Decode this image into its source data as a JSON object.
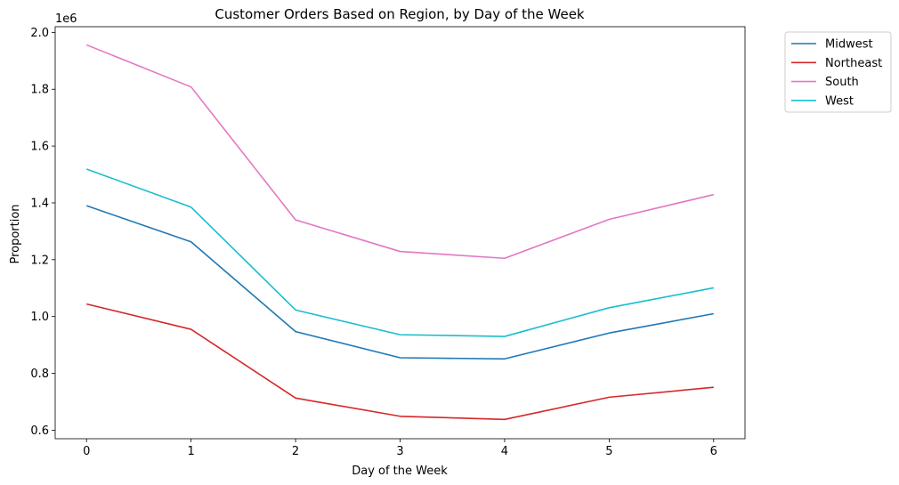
{
  "chart_data": {
    "type": "line",
    "title": "Customer Orders Based on Region, by Day of the Week",
    "xlabel": "Day of the Week",
    "ylabel": "Proportion",
    "y_offset_label": "1e6",
    "x": [
      0,
      1,
      2,
      3,
      4,
      5,
      6
    ],
    "x_ticks": [
      "0",
      "1",
      "2",
      "3",
      "4",
      "5",
      "6"
    ],
    "y_ticks": [
      "0.6",
      "0.8",
      "1.0",
      "1.2",
      "1.4",
      "1.6",
      "1.8",
      "2.0"
    ],
    "y_tick_values": [
      0.6,
      0.8,
      1.0,
      1.2,
      1.4,
      1.6,
      1.8,
      2.0
    ],
    "xlim": [
      -0.3,
      6.3
    ],
    "ylim": [
      0.57,
      2.02
    ],
    "grid": false,
    "legend_position": "outside-top-right",
    "series": [
      {
        "name": "Midwest",
        "color": "#1f77b4",
        "values": [
          1.39,
          1.263,
          0.947,
          0.855,
          0.851,
          0.942,
          1.01
        ]
      },
      {
        "name": "Northeast",
        "color": "#d62728",
        "values": [
          1.044,
          0.955,
          0.713,
          0.649,
          0.638,
          0.716,
          0.751
        ]
      },
      {
        "name": "South",
        "color": "#e377c2",
        "values": [
          1.956,
          1.808,
          1.34,
          1.229,
          1.205,
          1.342,
          1.429
        ]
      },
      {
        "name": "West",
        "color": "#17becf",
        "values": [
          1.519,
          1.385,
          1.023,
          0.936,
          0.93,
          1.031,
          1.101
        ]
      }
    ]
  }
}
